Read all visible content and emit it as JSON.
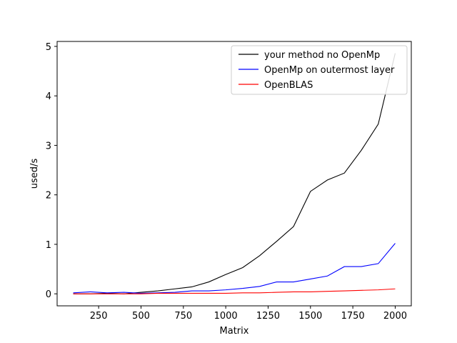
{
  "chart_data": {
    "type": "line",
    "title": "",
    "xlabel": "Matrix",
    "ylabel": "used/s",
    "xlim": [
      5,
      2095
    ],
    "ylim": [
      -0.243,
      5.1
    ],
    "xticks": [
      250,
      500,
      750,
      1000,
      1250,
      1500,
      1750,
      2000
    ],
    "yticks": [
      0,
      1,
      2,
      3,
      4,
      5
    ],
    "legend_position": "top-right",
    "grid": false,
    "x": [
      100,
      200,
      300,
      400,
      500,
      600,
      700,
      800,
      900,
      1000,
      1100,
      1200,
      1300,
      1400,
      1500,
      1600,
      1700,
      1800,
      1900,
      2000
    ],
    "series": [
      {
        "name": "your method no OpenMp",
        "color": "#000000",
        "values": [
          0.0,
          0.0,
          0.01,
          0.0,
          0.03,
          0.06,
          0.1,
          0.14,
          0.24,
          0.39,
          0.53,
          0.77,
          1.06,
          1.36,
          2.07,
          2.3,
          2.44,
          2.9,
          3.43,
          4.86
        ]
      },
      {
        "name": "OpenMp on outermost layer",
        "color": "#0000ff",
        "values": [
          0.02,
          0.04,
          0.02,
          0.03,
          0.01,
          0.02,
          0.03,
          0.06,
          0.06,
          0.08,
          0.11,
          0.15,
          0.24,
          0.24,
          0.3,
          0.36,
          0.55,
          0.55,
          0.61,
          1.02
        ]
      },
      {
        "name": "OpenBLAS",
        "color": "#ff0000",
        "values": [
          0.0,
          0.0,
          0.0,
          0.0,
          0.0,
          0.01,
          0.01,
          0.01,
          0.01,
          0.01,
          0.02,
          0.02,
          0.03,
          0.04,
          0.04,
          0.05,
          0.06,
          0.07,
          0.08,
          0.1
        ]
      }
    ]
  }
}
